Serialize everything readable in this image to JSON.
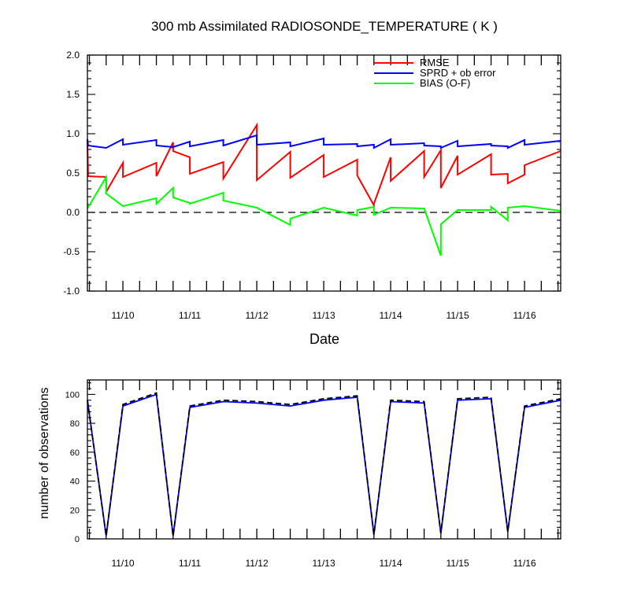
{
  "chart_data": [
    {
      "type": "line",
      "title": "300 mb Assimilated RADIOSONDE_TEMPERATURE ( K )",
      "xlabel": "Date",
      "ylabel": "",
      "xlim": [
        9.47,
        16.54
      ],
      "ylim": [
        -1.0,
        2.0
      ],
      "yticks": [
        {
          "v": 2.0,
          "t": "2.0"
        },
        {
          "v": 1.5,
          "t": "1.5"
        },
        {
          "v": 1.0,
          "t": "1.0"
        },
        {
          "v": 0.5,
          "t": "0.5"
        },
        {
          "v": 0.0,
          "t": "0.0"
        },
        {
          "v": -0.5,
          "t": "-0.5"
        },
        {
          "v": -1.0,
          "t": "-1.0"
        }
      ],
      "xticklabels": [
        {
          "v": 10,
          "t": "11/10"
        },
        {
          "v": 11,
          "t": "11/11"
        },
        {
          "v": 12,
          "t": "11/12"
        },
        {
          "v": 13,
          "t": "11/13"
        },
        {
          "v": 14,
          "t": "11/14"
        },
        {
          "v": 15,
          "t": "11/15"
        },
        {
          "v": 16,
          "t": "11/16"
        }
      ],
      "legend_position": "top-right",
      "zero_line": "dashed",
      "series": [
        {
          "name": "RMSE",
          "color": "#ff0000",
          "x": [
            9.47,
            9.48,
            9.48,
            9.75,
            9.75,
            10.0,
            10.0,
            10.5,
            10.5,
            10.75,
            10.75,
            11.0,
            11.0,
            11.5,
            11.5,
            12.0,
            12.0,
            12.5,
            12.5,
            13.0,
            13.0,
            13.5,
            13.5,
            13.75,
            13.75,
            14.0,
            14.0,
            14.5,
            14.5,
            14.75,
            14.75,
            15.0,
            15.0,
            15.5,
            15.5,
            15.75,
            15.75,
            16.0,
            16.0,
            16.54
          ],
          "values": [
            0.93,
            0.46,
            0.46,
            0.45,
            0.26,
            0.63,
            0.45,
            0.63,
            0.46,
            0.89,
            0.78,
            0.7,
            0.49,
            0.64,
            0.43,
            1.11,
            0.41,
            0.77,
            0.44,
            0.73,
            0.45,
            0.67,
            0.47,
            0.09,
            0.11,
            0.7,
            0.4,
            0.78,
            0.45,
            0.79,
            0.31,
            0.72,
            0.48,
            0.74,
            0.48,
            0.49,
            0.37,
            0.48,
            0.6,
            0.78
          ]
        },
        {
          "name": "SPRD + ob error",
          "color": "#0000ff",
          "x": [
            9.47,
            9.48,
            9.75,
            10.0,
            10.0,
            10.5,
            10.5,
            10.75,
            10.75,
            11.0,
            11.0,
            11.5,
            11.5,
            12.0,
            12.0,
            12.5,
            12.5,
            13.0,
            13.0,
            13.5,
            13.5,
            13.75,
            13.75,
            14.0,
            14.0,
            14.5,
            14.5,
            14.75,
            14.75,
            15.0,
            15.0,
            15.5,
            15.5,
            15.75,
            15.75,
            16.0,
            16.0,
            16.54
          ],
          "values": [
            0.93,
            0.85,
            0.82,
            0.93,
            0.86,
            0.92,
            0.85,
            0.83,
            0.83,
            0.9,
            0.84,
            0.92,
            0.85,
            0.98,
            0.86,
            0.89,
            0.84,
            0.94,
            0.86,
            0.87,
            0.84,
            0.86,
            0.82,
            0.93,
            0.86,
            0.88,
            0.85,
            0.84,
            0.82,
            0.91,
            0.84,
            0.87,
            0.85,
            0.84,
            0.82,
            0.92,
            0.86,
            0.91
          ]
        },
        {
          "name": "BIAS (O-F)",
          "color": "#00ff00",
          "x": [
            9.47,
            9.75,
            9.75,
            10.0,
            10.5,
            10.5,
            10.75,
            10.75,
            11.0,
            11.0,
            11.5,
            11.5,
            12.0,
            12.5,
            12.5,
            13.0,
            13.5,
            13.5,
            13.75,
            13.75,
            14.0,
            14.5,
            14.75,
            14.75,
            15.0,
            15.5,
            15.5,
            15.75,
            15.75,
            16.0,
            16.54
          ],
          "values": [
            0.05,
            0.45,
            0.24,
            0.08,
            0.18,
            0.11,
            0.31,
            0.19,
            0.12,
            0.11,
            0.25,
            0.15,
            0.06,
            -0.16,
            -0.08,
            0.06,
            -0.04,
            0.03,
            0.07,
            -0.03,
            0.06,
            0.05,
            -0.55,
            -0.15,
            0.03,
            0.03,
            0.07,
            -0.1,
            0.06,
            0.08,
            0.02
          ]
        }
      ]
    },
    {
      "type": "line",
      "title": "",
      "xlabel": "",
      "ylabel": "number of observations",
      "xlim": [
        9.47,
        16.54
      ],
      "ylim": [
        0,
        110
      ],
      "yticks": [
        {
          "v": 0,
          "t": "0"
        },
        {
          "v": 20,
          "t": "20"
        },
        {
          "v": 40,
          "t": "40"
        },
        {
          "v": 60,
          "t": "60"
        },
        {
          "v": 80,
          "t": "80"
        },
        {
          "v": 100,
          "t": "100"
        }
      ],
      "xticklabels": [
        {
          "v": 10,
          "t": "11/10"
        },
        {
          "v": 11,
          "t": "11/11"
        },
        {
          "v": 12,
          "t": "11/12"
        },
        {
          "v": 13,
          "t": "11/13"
        },
        {
          "v": 14,
          "t": "11/14"
        },
        {
          "v": 15,
          "t": "11/15"
        },
        {
          "v": 16,
          "t": "11/16"
        }
      ],
      "series": [
        {
          "color": "#0000ff",
          "dash": "solid",
          "x": [
            9.47,
            9.75,
            10.0,
            10.5,
            10.75,
            11.0,
            11.5,
            12.0,
            12.5,
            13.0,
            13.5,
            13.75,
            14.0,
            14.5,
            14.75,
            15.0,
            15.5,
            15.75,
            16.0,
            16.54
          ],
          "values": [
            96,
            2,
            92,
            100,
            2,
            91,
            95,
            94,
            92,
            96,
            98,
            3,
            95,
            94,
            4,
            96,
            97,
            5,
            91,
            96
          ]
        },
        {
          "color": "#000000",
          "dash": "dashed",
          "x": [
            9.47,
            9.75,
            10.0,
            10.5,
            10.75,
            11.0,
            11.5,
            12.0,
            12.5,
            13.0,
            13.5,
            13.75,
            14.0,
            14.5,
            14.75,
            15.0,
            15.5,
            15.75,
            16.0,
            16.54
          ],
          "values": [
            96,
            2,
            93,
            101,
            2,
            92,
            96,
            95,
            93,
            97,
            99,
            3,
            96,
            95,
            4,
            97,
            98,
            5,
            92,
            97
          ]
        }
      ]
    }
  ]
}
